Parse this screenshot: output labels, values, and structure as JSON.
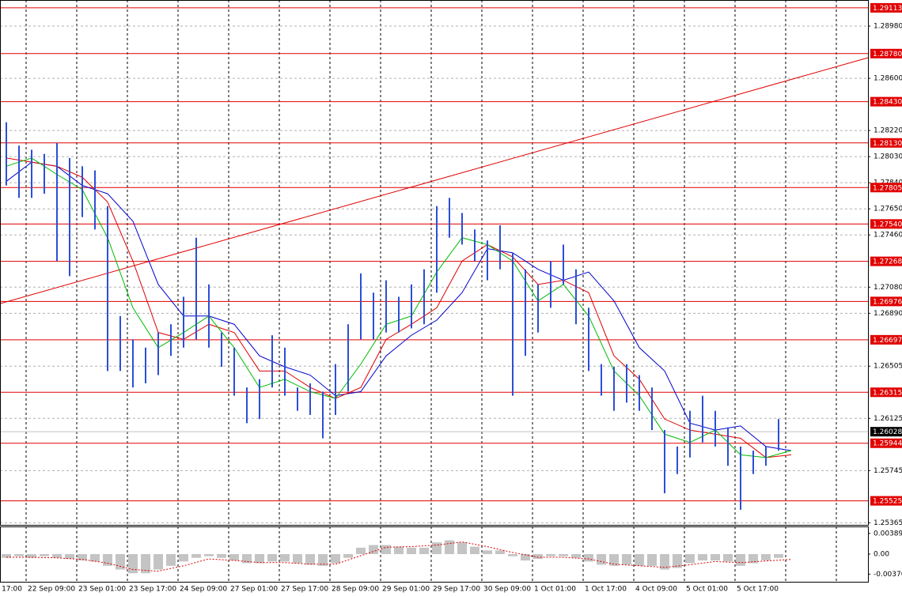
{
  "chart_data": {
    "type": "ohlc",
    "x_labels": [
      "17:00",
      "22 Sep 09:00",
      "23 Sep 01:00",
      "23 Sep 17:00",
      "24 Sep 09:00",
      "27 Sep 01:00",
      "27 Sep 17:00",
      "28 Sep 09:00",
      "29 Sep 01:00",
      "29 Sep 17:00",
      "30 Sep 09:00",
      "1 Oct 01:00",
      "1 Oct 17:00",
      "4 Oct 09:00",
      "5 Oct 01:00",
      "5 Oct 17:00"
    ],
    "high": [
      1.2828,
      1.2811,
      1.2808,
      1.2805,
      1.2813,
      1.2802,
      1.2796,
      1.2793,
      1.2767,
      1.2687,
      1.267,
      1.2664,
      1.2675,
      1.2681,
      1.2701,
      1.2744,
      1.271,
      1.2675,
      1.2664,
      1.2635,
      1.2641,
      1.2673,
      1.2664,
      1.2635,
      1.2638,
      1.2632,
      1.2652,
      1.2681,
      1.2718,
      1.2704,
      1.2713,
      1.2701,
      1.271,
      1.2721,
      1.2767,
      1.2773,
      1.2762,
      1.275,
      1.2742,
      1.2753,
      1.2733,
      1.2721,
      1.271,
      1.2727,
      1.2739,
      1.2721,
      1.2693,
      1.2652,
      1.265,
      1.2652,
      1.2644,
      1.2635,
      1.2604,
      1.2592,
      1.2618,
      1.2629,
      1.2618,
      1.2606,
      1.2592,
      1.2589,
      1.2592,
      1.2612
    ],
    "low": [
      1.2782,
      1.2773,
      1.2773,
      1.2776,
      1.2727,
      1.2716,
      1.2759,
      1.275,
      1.2647,
      1.2647,
      1.2635,
      1.2638,
      1.2644,
      1.2658,
      1.2664,
      1.267,
      1.2664,
      1.265,
      1.2629,
      1.2609,
      1.2612,
      1.2635,
      1.2629,
      1.2618,
      1.2615,
      1.2598,
      1.2615,
      1.2632,
      1.267,
      1.267,
      1.2675,
      1.2675,
      1.2678,
      1.2681,
      1.2704,
      1.2744,
      1.2739,
      1.2727,
      1.2713,
      1.2721,
      1.2629,
      1.2658,
      1.2675,
      1.2693,
      1.271,
      1.2681,
      1.2647,
      1.2629,
      1.2618,
      1.2624,
      1.2618,
      1.2604,
      1.2558,
      1.2572,
      1.2584,
      1.2595,
      1.2592,
      1.2578,
      1.2546,
      1.2572,
      1.2578,
      1.2589
    ],
    "color": "#2b4fd6",
    "ylim": [
      1.2535,
      1.2917
    ],
    "yticks": [
      {
        "value": 1.2898,
        "label": "1.28980"
      },
      {
        "value": 1.286,
        "label": "1.28600"
      },
      {
        "value": 1.2822,
        "label": "1.28220"
      },
      {
        "value": 1.2803,
        "label": "1.28030"
      },
      {
        "value": 1.2784,
        "label": "1.27840"
      },
      {
        "value": 1.2765,
        "label": "1.27650"
      },
      {
        "value": 1.2746,
        "label": "1.27460"
      },
      {
        "value": 1.2708,
        "label": "1.27080"
      },
      {
        "value": 1.2689,
        "label": "1.26890"
      },
      1.26505,
      1.26125,
      1.25745,
      1.25365
    ],
    "grid": true,
    "levels": [
      1.29113,
      {
        "value": 1.2878,
        "label": "1.28780"
      },
      {
        "value": 1.2843,
        "label": "1.28430"
      },
      {
        "value": 1.2813,
        "label": "1.28130"
      },
      1.27805,
      {
        "value": 1.2754,
        "label": "1.27540"
      },
      1.27268,
      1.26976,
      1.26697,
      1.26315,
      1.25944,
      1.25525
    ],
    "level_color": "#e00000",
    "current_price": 1.26028,
    "trendline": [
      1.2696,
      1.2875
    ],
    "series": [
      {
        "color": "#0000cc",
        "values": [
          1.2785,
          1.2799,
          1.2796,
          1.2782,
          1.2776,
          1.2756,
          1.271,
          1.2687,
          1.2687,
          1.2681,
          1.2658,
          1.265,
          1.2644,
          1.2629,
          1.2632,
          1.2658,
          1.2673,
          1.2684,
          1.2704,
          1.2736,
          1.2733,
          1.2721,
          1.2713,
          1.2719,
          1.2698,
          1.2664,
          1.2647,
          1.2609,
          1.2604,
          1.2607,
          1.2592,
          1.2589
        ]
      },
      {
        "color": "#dd0000",
        "values": [
          1.2802,
          1.2799,
          1.2796,
          1.2788,
          1.277,
          1.2727,
          1.2675,
          1.267,
          1.2681,
          1.2675,
          1.2647,
          1.2647,
          1.2635,
          1.2627,
          1.2635,
          1.267,
          1.2681,
          1.2693,
          1.2727,
          1.2739,
          1.273,
          1.271,
          1.2713,
          1.2704,
          1.2658,
          1.2641,
          1.2612,
          1.2604,
          1.2601,
          1.2598,
          1.2584,
          1.2586
        ]
      },
      {
        "color": "#00bb00",
        "values": [
          1.2796,
          1.2802,
          1.279,
          1.2779,
          1.2744,
          1.2693,
          1.2664,
          1.2675,
          1.2687,
          1.2664,
          1.2635,
          1.2641,
          1.2632,
          1.2627,
          1.2652,
          1.2681,
          1.2687,
          1.2719,
          1.2744,
          1.2739,
          1.2727,
          1.2698,
          1.271,
          1.2687,
          1.2647,
          1.2629,
          1.2601,
          1.2595,
          1.2604,
          1.2586,
          1.2584,
          1.2589
        ]
      }
    ],
    "indicator": {
      "ylim": [
        -0.0052,
        0.0052
      ],
      "yticks": [
        0.003897,
        {
          "value": 0,
          "label": "0.00"
        },
        -0.00376
      ],
      "histogram_color": "#c4c4c4",
      "signal_color": "#dd0000",
      "histogram": [
        -0.0007,
        -0.0004,
        -0.0007,
        -0.0004,
        -0.0007,
        -0.0009,
        -0.0012,
        -0.0014,
        -0.0022,
        -0.0029,
        -0.0036,
        -0.0036,
        -0.0029,
        -0.0022,
        -0.0014,
        -0.0007,
        -0.0004,
        -0.0007,
        -0.0012,
        -0.0017,
        -0.0017,
        -0.0014,
        -0.0014,
        -0.0017,
        -0.002,
        -0.0022,
        -0.0017,
        -0.0007,
        0.0012,
        0.0017,
        0.0017,
        0.0014,
        0.0012,
        0.0012,
        0.0022,
        0.0026,
        0.0022,
        0.0014,
        0.0007,
        0.0007,
        -0.0004,
        -0.0012,
        -0.0009,
        -0.0004,
        -0.0004,
        -0.0007,
        -0.0014,
        -0.002,
        -0.0022,
        -0.002,
        -0.0022,
        -0.0022,
        -0.0029,
        -0.0026,
        -0.0017,
        -0.0012,
        -0.0012,
        -0.0014,
        -0.0022,
        -0.0017,
        -0.0012,
        -0.0007
      ],
      "signal": [
        -0.0006,
        -0.0006,
        -0.0007,
        -0.001,
        -0.0017,
        -0.0029,
        -0.0032,
        -0.0022,
        -0.0009,
        -0.0012,
        -0.0016,
        -0.0016,
        -0.0019,
        -0.0019,
        -0.0003,
        0.0013,
        0.0014,
        0.0017,
        0.0023,
        0.0014,
        0.0003,
        -0.0006,
        -0.0006,
        -0.0009,
        -0.0019,
        -0.0022,
        -0.0025,
        -0.002,
        -0.0014,
        -0.0016,
        -0.0013,
        -0.001
      ]
    }
  }
}
